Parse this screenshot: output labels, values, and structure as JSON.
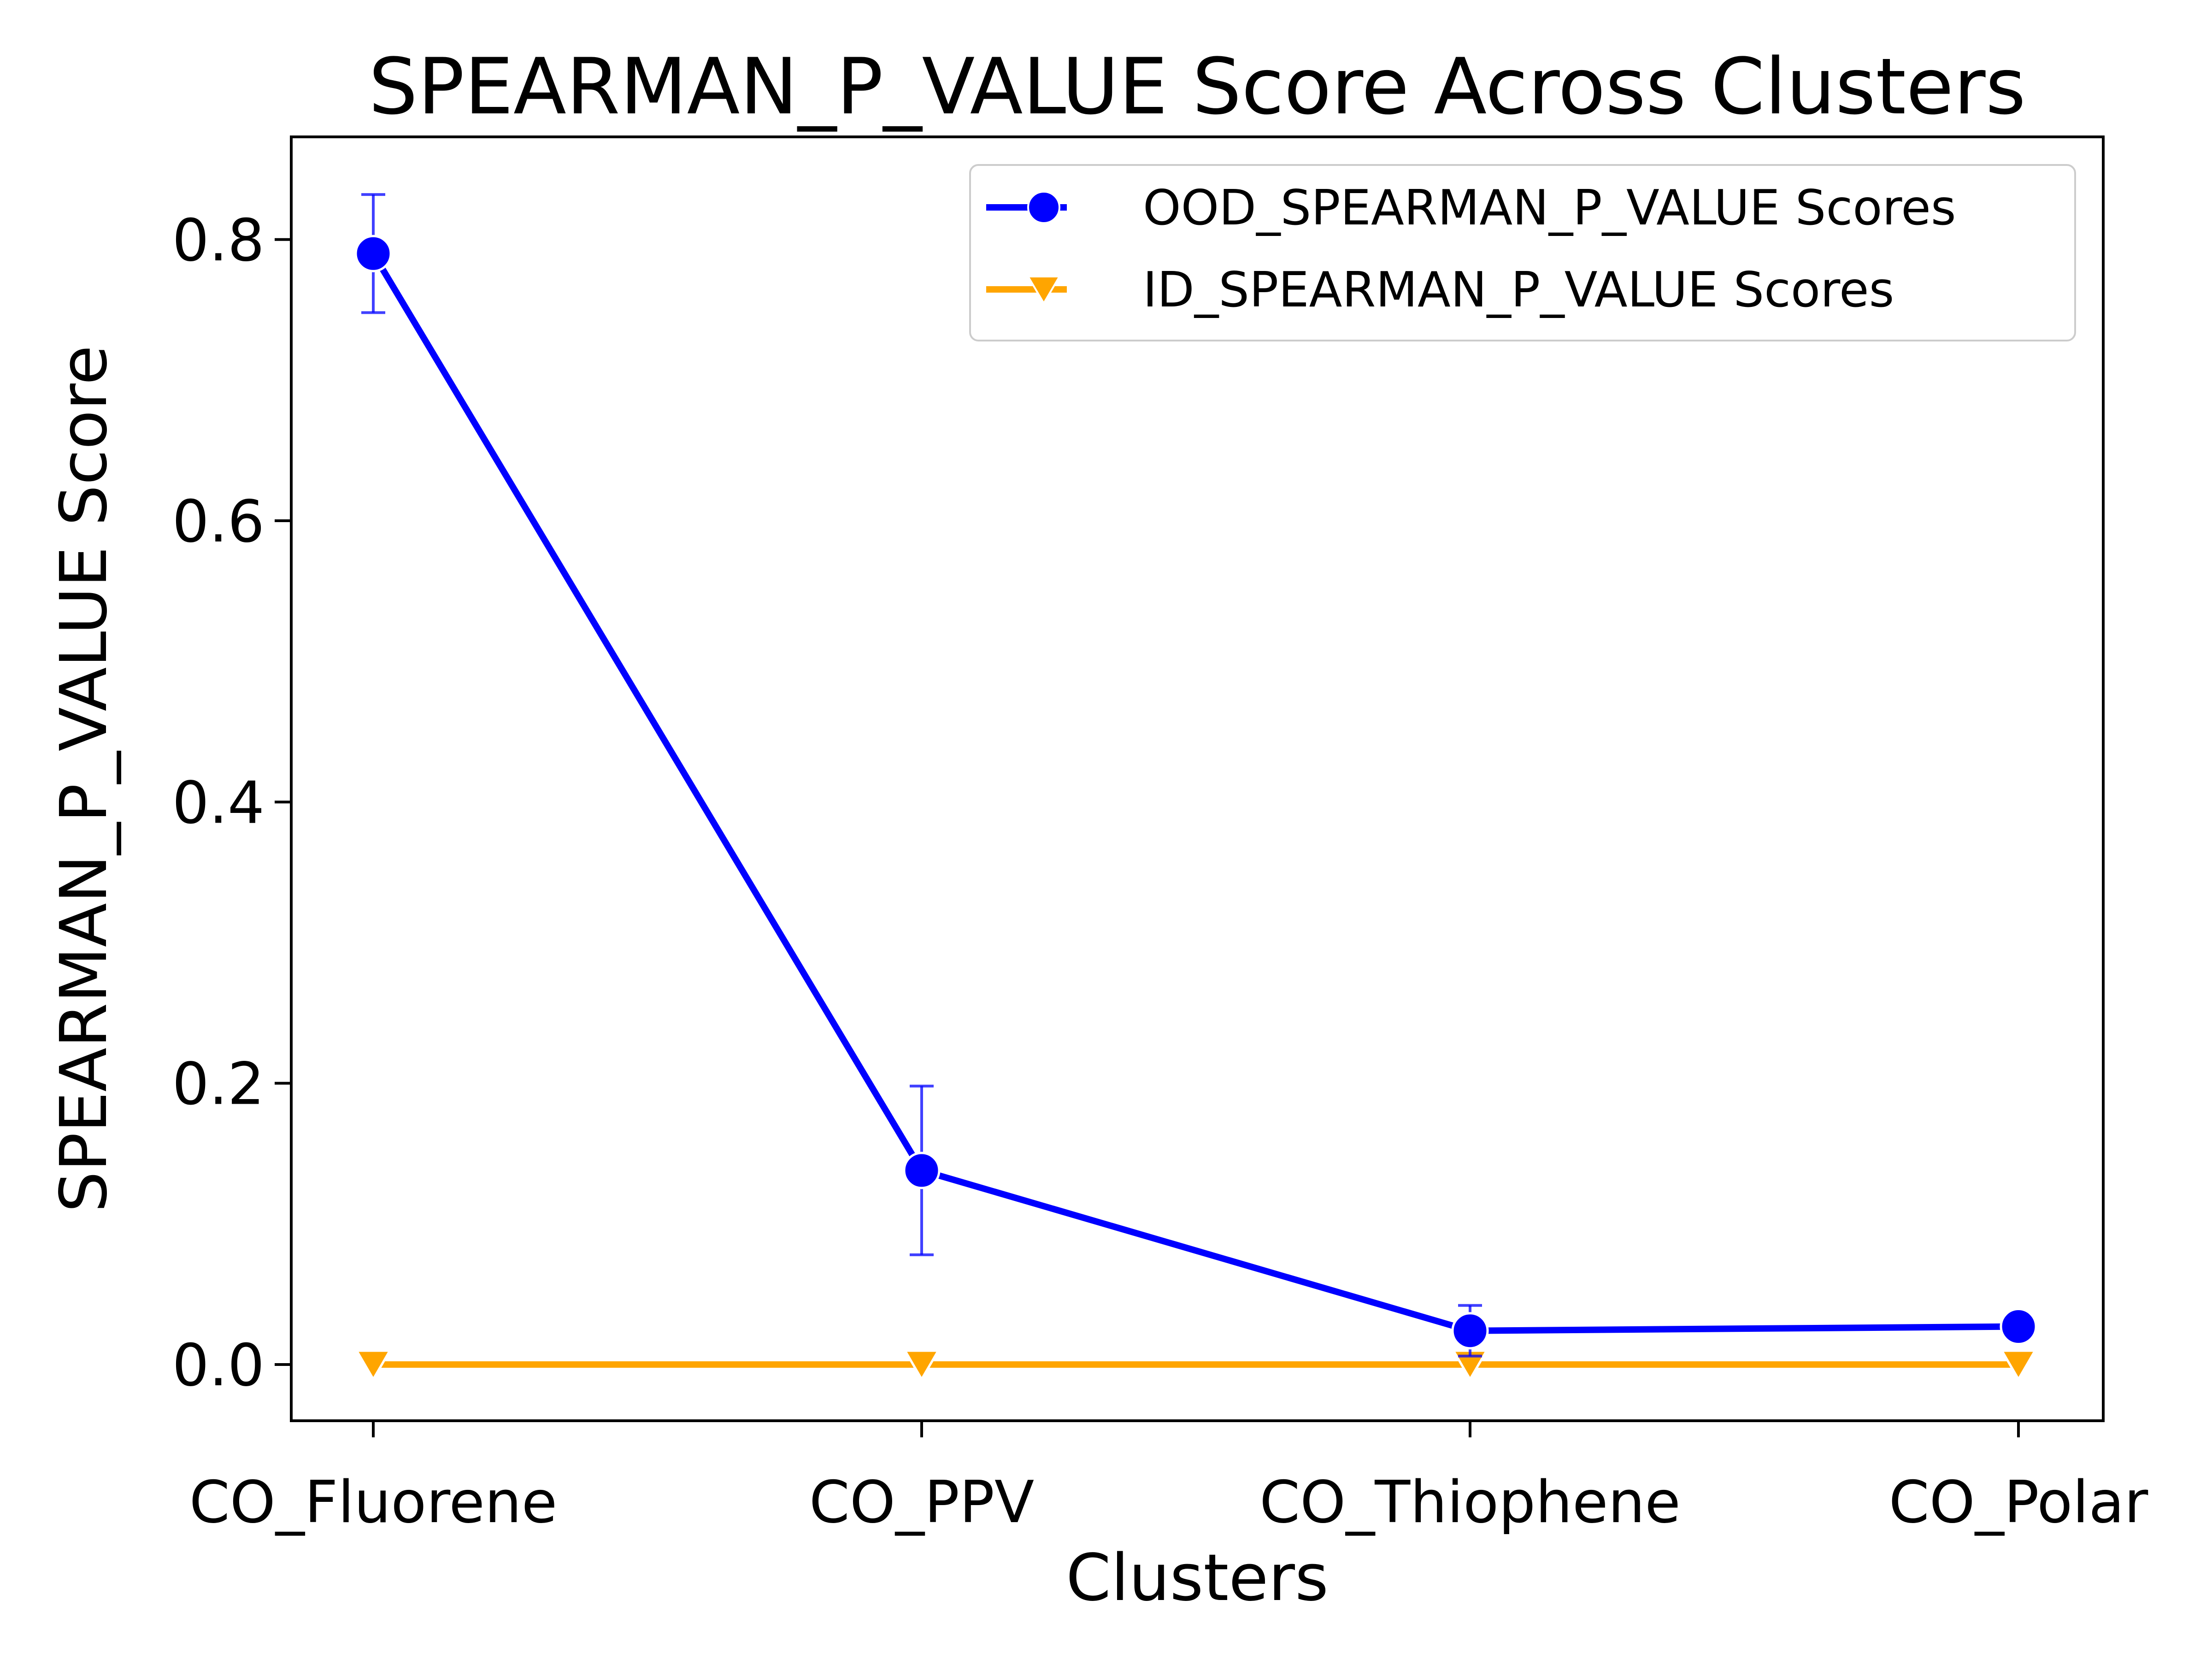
{
  "chart_data": {
    "type": "line",
    "title": "SPEARMAN_P_VALUE Score Across Clusters",
    "xlabel": "Clusters",
    "ylabel": "SPEARMAN_P_VALUE Score",
    "categories": [
      "CO_Fluorene",
      "CO_PPV",
      "CO_Thiophene",
      "CO_Polar"
    ],
    "ylim": [
      -0.04,
      0.873
    ],
    "yticks": [
      0.0,
      0.2,
      0.4,
      0.6,
      0.8
    ],
    "ytick_labels": [
      "0.0",
      "0.2",
      "0.4",
      "0.6",
      "0.8"
    ],
    "grid": false,
    "legend_position": "top-right",
    "series": [
      {
        "name": "OOD_SPEARMAN_P_VALUE Scores",
        "color": "#0000ff",
        "marker": "circle",
        "values": [
          0.79,
          0.138,
          0.024,
          0.027
        ],
        "error": [
          0.042,
          0.06,
          0.018,
          0.0
        ]
      },
      {
        "name": "ID_SPEARMAN_P_VALUE Scores",
        "color": "#ffa500",
        "marker": "triangle-down",
        "values": [
          0.0,
          0.0,
          0.0,
          0.0
        ],
        "error": [
          0.0,
          0.0,
          0.0,
          0.0
        ]
      }
    ]
  }
}
